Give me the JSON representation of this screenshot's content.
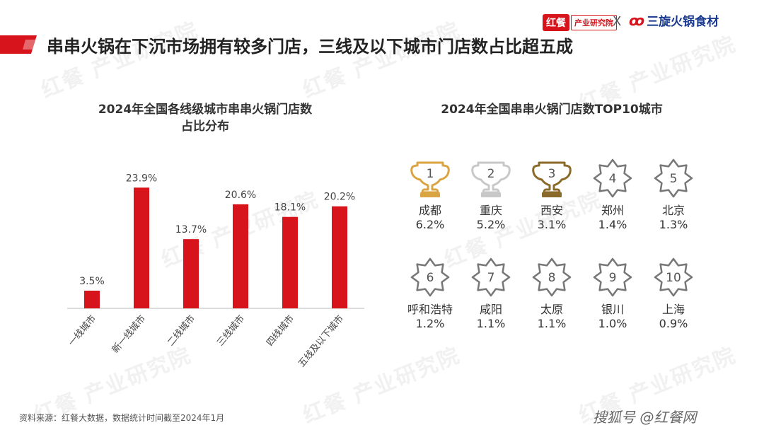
{
  "brand": {
    "logo_left_mark": "红餐",
    "logo_left_text": "产业研究院",
    "separator": "X",
    "logo_right_text": "三旋火锅食材"
  },
  "main_title": "串串火锅在下沉市场拥有较多门店，三线及以下城市门店数占比超五成",
  "colors": {
    "bar": "#d7141c",
    "gold": "#d9a441",
    "silver": "#c8c8c8",
    "bronze": "#8a6a2a",
    "star": "#777777"
  },
  "watermark": {
    "mark": "红餐",
    "text": "产业研究院"
  },
  "chart_data": [
    {
      "type": "bar",
      "title_line1": "2024年全国各线级城市串串火锅门店数",
      "title_line2": "占比分布",
      "categories": [
        "一线城市",
        "新一线城市",
        "二线城市",
        "三线城市",
        "四线城市",
        "五线及以下城市"
      ],
      "values": [
        3.5,
        23.9,
        13.7,
        20.6,
        18.1,
        20.2
      ],
      "value_labels": [
        "3.5%",
        "23.9%",
        "13.7%",
        "20.6%",
        "18.1%",
        "20.2%"
      ],
      "ylim": [
        0,
        28
      ],
      "grid": false
    },
    {
      "type": "table",
      "title": "2024年全国串串火锅门店数TOP10城市",
      "rows": [
        {
          "rank": "1",
          "icon": "gold-trophy-icon",
          "city": "成都",
          "share": "6.2%"
        },
        {
          "rank": "2",
          "icon": "silver-trophy-icon",
          "city": "重庆",
          "share": "5.2%"
        },
        {
          "rank": "3",
          "icon": "bronze-trophy-icon",
          "city": "西安",
          "share": "3.1%"
        },
        {
          "rank": "4",
          "icon": "star-badge-icon",
          "city": "郑州",
          "share": "1.4%"
        },
        {
          "rank": "5",
          "icon": "star-badge-icon",
          "city": "北京",
          "share": "1.3%"
        },
        {
          "rank": "6",
          "icon": "star-badge-icon",
          "city": "呼和浩特",
          "share": "1.2%"
        },
        {
          "rank": "7",
          "icon": "star-badge-icon",
          "city": "咸阳",
          "share": "1.1%"
        },
        {
          "rank": "8",
          "icon": "star-badge-icon",
          "city": "太原",
          "share": "1.1%"
        },
        {
          "rank": "9",
          "icon": "star-badge-icon",
          "city": "银川",
          "share": "1.0%"
        },
        {
          "rank": "10",
          "icon": "star-badge-icon",
          "city": "上海",
          "share": "0.9%"
        }
      ]
    }
  ],
  "source": "资料来源：红餐大数据，数据统计时间截至2024年1月",
  "footer": "搜狐号 @红餐网"
}
